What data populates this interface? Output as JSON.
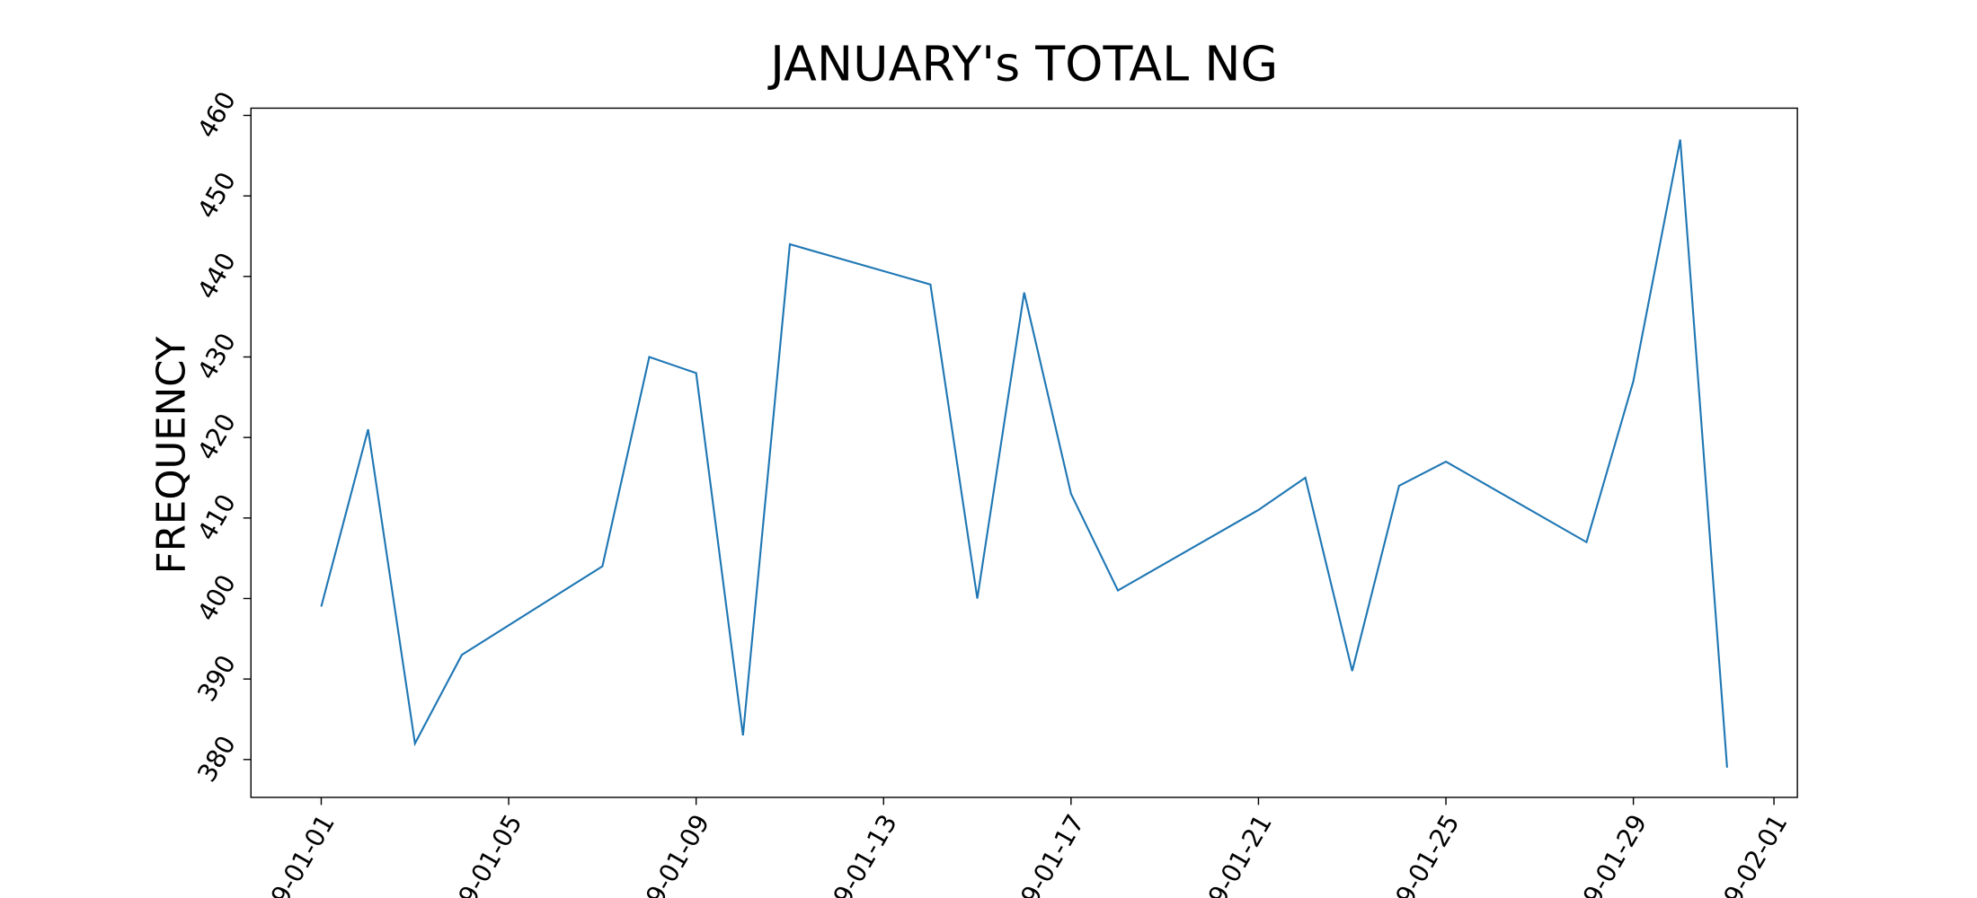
{
  "chart_data": {
    "type": "line",
    "title": "JANUARY's TOTAL NG",
    "y_label": "FREQUENCY",
    "x": [
      1,
      2,
      3,
      4,
      7,
      8,
      9,
      10,
      11,
      14,
      15,
      16,
      17,
      18,
      21,
      22,
      23,
      24,
      25,
      28,
      29,
      30,
      31
    ],
    "series": [
      {
        "color": "#1f77b4",
        "values": [
          399,
          421,
          382,
          393,
          404,
          430,
          428,
          383,
          444,
          439,
          400,
          438,
          413,
          401,
          411,
          415,
          391,
          414,
          417,
          407,
          427,
          457,
          379
        ]
      }
    ],
    "xlim": [
      -0.5,
      32.5
    ],
    "xticks": [
      {
        "value": 1,
        "label": "9-01-01"
      },
      {
        "value": 5,
        "label": "9-01-05"
      },
      {
        "value": 9,
        "label": "9-01-09"
      },
      {
        "value": 13,
        "label": "9-01-13"
      },
      {
        "value": 17,
        "label": "9-01-17"
      },
      {
        "value": 21,
        "label": "9-01-21"
      },
      {
        "value": 25,
        "label": "9-01-25"
      },
      {
        "value": 29,
        "label": "9-01-29"
      },
      {
        "value": 32,
        "label": "9-02-01"
      }
    ],
    "ylim": [
      375.3,
      460.9
    ],
    "yticks": [
      380,
      390,
      400,
      410,
      420,
      430,
      440,
      450,
      460
    ],
    "grid": false
  }
}
